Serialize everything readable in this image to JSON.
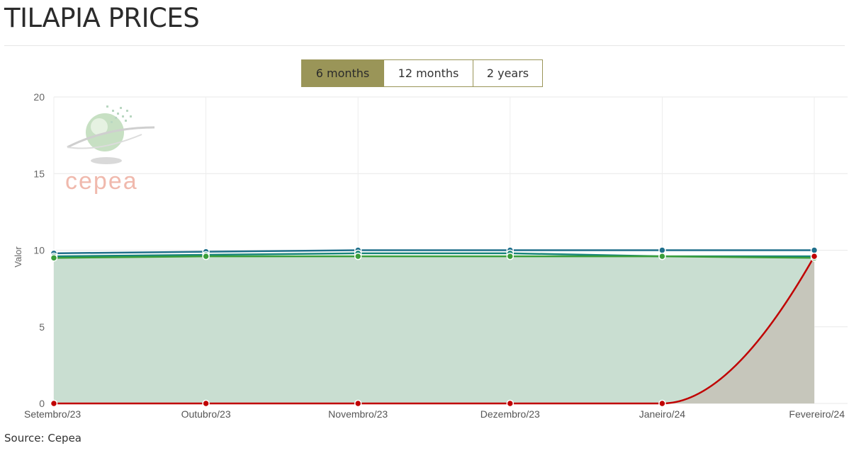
{
  "page": {
    "title": "TILAPIA PRICES",
    "source": "Source: Cepea"
  },
  "range_tabs": [
    {
      "label": "6 months",
      "active": true
    },
    {
      "label": "12 months",
      "active": false
    },
    {
      "label": "2 years",
      "active": false
    }
  ],
  "watermark": {
    "text": "cepea"
  },
  "colors": {
    "tab_active": "#9a9558",
    "series_blue": "#1f6f8b",
    "series_teal": "#18857a",
    "series_green": "#3a9e3a",
    "series_red": "#c00000",
    "area_green": "#c9ded1",
    "area_grey": "#c6c6bb"
  },
  "chart_data": {
    "type": "line",
    "ylabel": "Valor",
    "xlabel": "",
    "categories": [
      "Setembro/23",
      "Outubro/23",
      "Novembro/23",
      "Dezembro/23",
      "Janeiro/24",
      "Fevereiro/24"
    ],
    "ylim": [
      0,
      20
    ],
    "yticks": [
      0,
      5,
      10,
      15,
      20
    ],
    "grid": true,
    "series": [
      {
        "values": [
          9.8,
          9.9,
          10.0,
          10.0,
          10.0,
          10.0
        ],
        "color": "#1f6f8b",
        "area": false
      },
      {
        "values": [
          9.6,
          9.7,
          9.8,
          9.8,
          9.6,
          9.6
        ],
        "color": "#18857a",
        "area": false
      },
      {
        "values": [
          9.5,
          9.6,
          9.6,
          9.6,
          9.6,
          9.5
        ],
        "color": "#3a9e3a",
        "area": true,
        "area_color": "#c9ded1"
      },
      {
        "values": [
          0,
          0,
          0,
          0,
          0,
          9.6
        ],
        "color": "#c00000",
        "area": true,
        "area_color": "#c6c6bb"
      }
    ]
  }
}
